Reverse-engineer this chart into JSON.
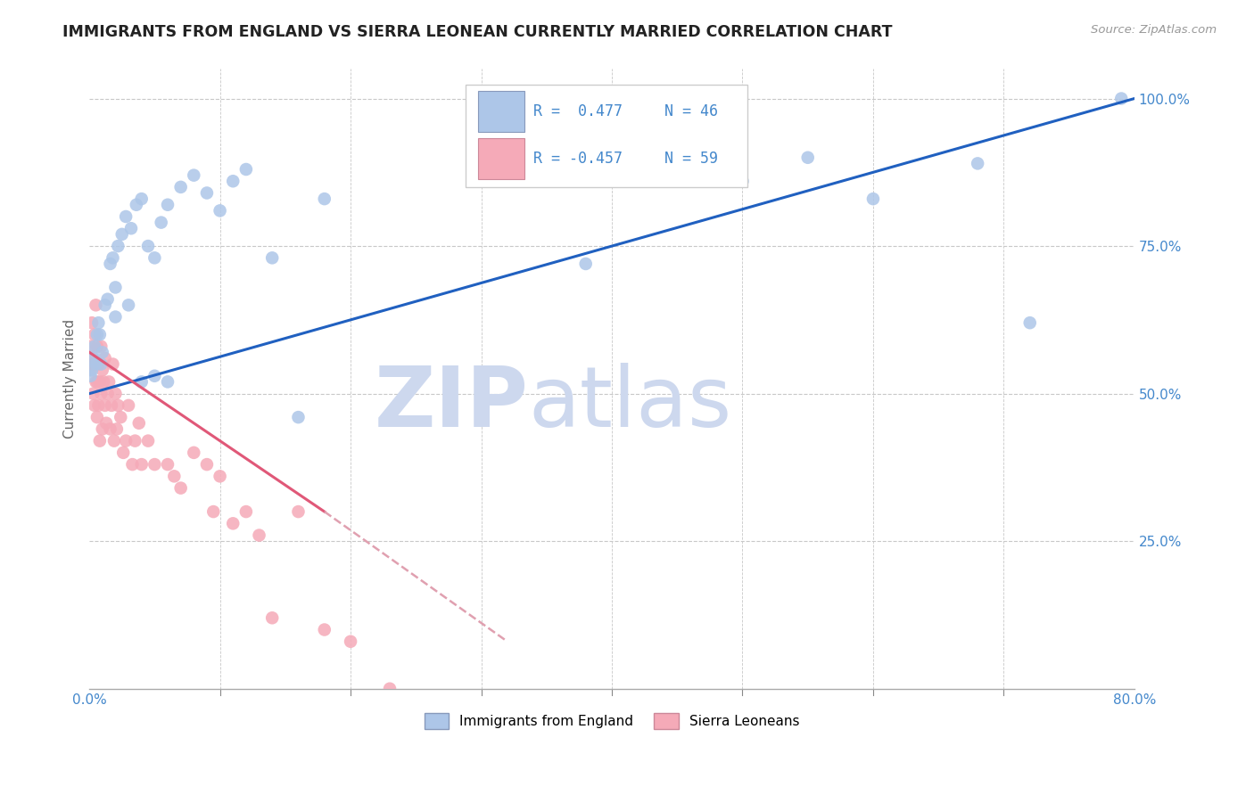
{
  "title": "IMMIGRANTS FROM ENGLAND VS SIERRA LEONEAN CURRENTLY MARRIED CORRELATION CHART",
  "source": "Source: ZipAtlas.com",
  "ylabel": "Currently Married",
  "watermark_zip": "ZIP",
  "watermark_atlas": "atlas",
  "legend_r": [
    "R =  0.477",
    "R = -0.457"
  ],
  "legend_n": [
    "N = 46",
    "N = 59"
  ],
  "legend_labels": [
    "Immigrants from England",
    "Sierra Leoneans"
  ],
  "blue_color": "#adc6e8",
  "pink_color": "#f5aab8",
  "blue_line_color": "#2060c0",
  "pink_line_color": "#e05878",
  "pink_dash_color": "#e0a0b0",
  "blue_scatter": {
    "x": [
      0.001,
      0.002,
      0.003,
      0.004,
      0.005,
      0.006,
      0.007,
      0.008,
      0.009,
      0.01,
      0.012,
      0.014,
      0.016,
      0.018,
      0.02,
      0.022,
      0.025,
      0.028,
      0.032,
      0.036,
      0.04,
      0.045,
      0.05,
      0.055,
      0.06,
      0.07,
      0.08,
      0.09,
      0.1,
      0.11,
      0.12,
      0.14,
      0.16,
      0.18,
      0.02,
      0.03,
      0.04,
      0.05,
      0.06,
      0.38,
      0.5,
      0.55,
      0.6,
      0.68,
      0.72,
      0.79
    ],
    "y": [
      0.53,
      0.54,
      0.56,
      0.58,
      0.55,
      0.6,
      0.62,
      0.6,
      0.55,
      0.57,
      0.65,
      0.66,
      0.72,
      0.73,
      0.68,
      0.75,
      0.77,
      0.8,
      0.78,
      0.82,
      0.83,
      0.75,
      0.73,
      0.79,
      0.82,
      0.85,
      0.87,
      0.84,
      0.81,
      0.86,
      0.88,
      0.73,
      0.46,
      0.83,
      0.63,
      0.65,
      0.52,
      0.53,
      0.52,
      0.72,
      0.86,
      0.9,
      0.83,
      0.89,
      0.62,
      1.0
    ]
  },
  "pink_scatter": {
    "x": [
      0.001,
      0.001,
      0.002,
      0.002,
      0.003,
      0.003,
      0.004,
      0.004,
      0.005,
      0.005,
      0.006,
      0.006,
      0.006,
      0.007,
      0.007,
      0.008,
      0.008,
      0.009,
      0.009,
      0.01,
      0.01,
      0.011,
      0.012,
      0.012,
      0.013,
      0.014,
      0.015,
      0.016,
      0.017,
      0.018,
      0.019,
      0.02,
      0.021,
      0.022,
      0.024,
      0.026,
      0.028,
      0.03,
      0.033,
      0.035,
      0.038,
      0.04,
      0.045,
      0.05,
      0.06,
      0.065,
      0.07,
      0.08,
      0.09,
      0.095,
      0.1,
      0.11,
      0.12,
      0.13,
      0.14,
      0.16,
      0.18,
      0.2,
      0.23
    ],
    "y": [
      0.58,
      0.54,
      0.62,
      0.56,
      0.55,
      0.5,
      0.6,
      0.48,
      0.65,
      0.52,
      0.58,
      0.52,
      0.46,
      0.55,
      0.48,
      0.52,
      0.42,
      0.58,
      0.5,
      0.54,
      0.44,
      0.52,
      0.48,
      0.56,
      0.45,
      0.5,
      0.52,
      0.44,
      0.48,
      0.55,
      0.42,
      0.5,
      0.44,
      0.48,
      0.46,
      0.4,
      0.42,
      0.48,
      0.38,
      0.42,
      0.45,
      0.38,
      0.42,
      0.38,
      0.38,
      0.36,
      0.34,
      0.4,
      0.38,
      0.3,
      0.36,
      0.28,
      0.3,
      0.26,
      0.12,
      0.3,
      0.1,
      0.08,
      0.0
    ]
  },
  "xlim": [
    0,
    0.8
  ],
  "ylim": [
    0,
    1.05
  ],
  "xticks": [
    0.0,
    0.1,
    0.2,
    0.3,
    0.4,
    0.5,
    0.6,
    0.7,
    0.8
  ],
  "xticklabels_left": "0.0%",
  "xticklabels_right": "80.0%",
  "yticks": [
    0.25,
    0.5,
    0.75,
    1.0
  ],
  "yticklabels": [
    "25.0%",
    "50.0%",
    "75.0%",
    "100.0%"
  ],
  "grid_color": "#c8c8c8",
  "bg_color": "#ffffff",
  "watermark_color": "#cdd8ee",
  "title_color": "#222222",
  "axis_tick_color": "#4488cc",
  "ylabel_color": "#666666"
}
